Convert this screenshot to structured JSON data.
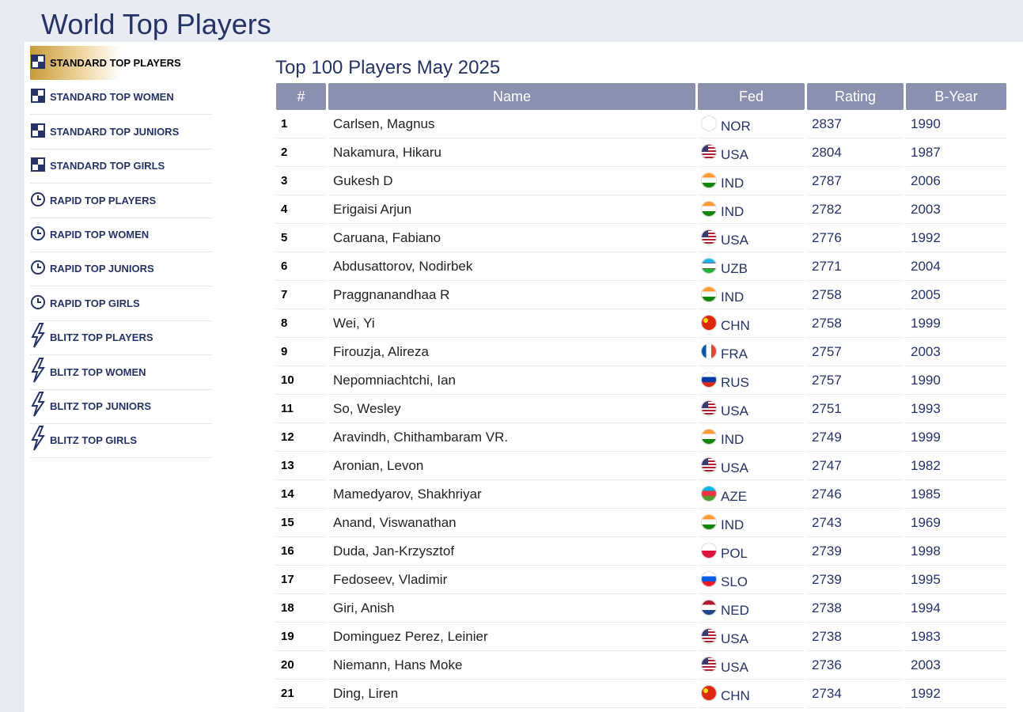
{
  "header": {
    "title": "World Top Players"
  },
  "sidebar": {
    "items": [
      "STANDARD TOP PLAYERS",
      "STANDARD TOP WOMEN",
      "STANDARD TOP JUNIORS",
      "STANDARD TOP GIRLS",
      "RAPID TOP PLAYERS",
      "RAPID TOP WOMEN",
      "RAPID TOP JUNIORS",
      "RAPID TOP GIRLS",
      "BLITZ TOP PLAYERS",
      "BLITZ TOP WOMEN",
      "BLITZ TOP JUNIORS",
      "BLITZ TOP GIRLS"
    ]
  },
  "table": {
    "title": "Top 100 Players May 2025",
    "columns": [
      "#",
      "Name",
      "Fed",
      "Rating",
      "B-Year"
    ],
    "rows": [
      [
        1,
        "Carlsen, Magnus",
        "NOR",
        2837,
        1990
      ],
      [
        2,
        "Nakamura, Hikaru",
        "USA",
        2804,
        1987
      ],
      [
        3,
        "Gukesh D",
        "IND",
        2787,
        2006
      ],
      [
        4,
        "Erigaisi Arjun",
        "IND",
        2782,
        2003
      ],
      [
        5,
        "Caruana, Fabiano",
        "USA",
        2776,
        1992
      ],
      [
        6,
        "Abdusattorov, Nodirbek",
        "UZB",
        2771,
        2004
      ],
      [
        7,
        "Praggnanandhaa R",
        "IND",
        2758,
        2005
      ],
      [
        8,
        "Wei, Yi",
        "CHN",
        2758,
        1999
      ],
      [
        9,
        "Firouzja, Alireza",
        "FRA",
        2757,
        2003
      ],
      [
        10,
        "Nepomniachtchi, Ian",
        "RUS",
        2757,
        1990
      ],
      [
        11,
        "So, Wesley",
        "USA",
        2751,
        1993
      ],
      [
        12,
        "Aravindh, Chithambaram VR.",
        "IND",
        2749,
        1999
      ],
      [
        13,
        "Aronian, Levon",
        "USA",
        2747,
        1982
      ],
      [
        14,
        "Mamedyarov, Shakhriyar",
        "AZE",
        2746,
        1985
      ],
      [
        15,
        "Anand, Viswanathan",
        "IND",
        2743,
        1969
      ],
      [
        16,
        "Duda, Jan-Krzysztof",
        "POL",
        2739,
        1998
      ],
      [
        17,
        "Fedoseev, Vladimir",
        "SLO",
        2739,
        1995
      ],
      [
        18,
        "Giri, Anish",
        "NED",
        2738,
        1994
      ],
      [
        19,
        "Dominguez Perez, Leinier",
        "USA",
        2738,
        1983
      ],
      [
        20,
        "Niemann, Hans Moke",
        "USA",
        2736,
        2003
      ],
      [
        21,
        "Ding, Liren",
        "CHN",
        2734,
        1992
      ]
    ]
  }
}
